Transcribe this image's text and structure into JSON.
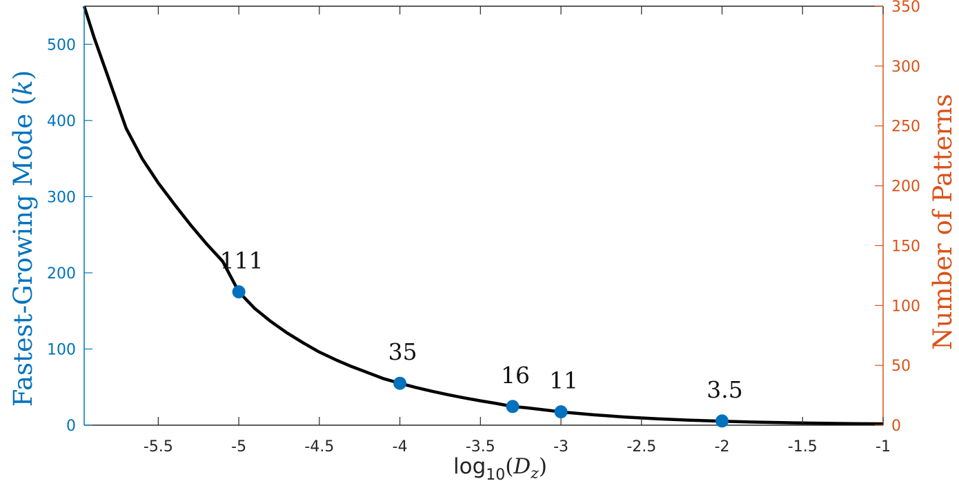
{
  "colors": {
    "left_axis": "#0072BD",
    "right_axis": "#D95319",
    "curve": "#000000",
    "markers": "#0072BD",
    "frame": "#262626"
  },
  "chart_data": {
    "type": "line",
    "xlabel": "log10(Dz)",
    "xlabel_parts": {
      "main": "log",
      "sub": "10",
      "paren_open": "(",
      "var": "D",
      "var_sub": "z",
      "paren_close": ")"
    },
    "ylabel_left": "Fastest-Growing Mode (k)",
    "ylabel_left_parts": {
      "text": "Fastest-Growing Mode (",
      "var": "k",
      "close": ")"
    },
    "ylabel_right": "Number of Patterns",
    "xlim": [
      -5.96,
      -1
    ],
    "ylim_left": [
      0,
      550
    ],
    "ylim_right": [
      0,
      350
    ],
    "x_ticks": [
      -5.5,
      -5,
      -4.5,
      -4,
      -3.5,
      -3,
      -2.5,
      -2,
      -1.5,
      -1
    ],
    "x_tick_labels": [
      "-5.5",
      "-5",
      "-4.5",
      "-4",
      "-3.5",
      "-3",
      "-2.5",
      "-2",
      "-1.5",
      "-1"
    ],
    "y_left_ticks": [
      0,
      100,
      200,
      300,
      400,
      500
    ],
    "y_left_tick_labels": [
      "0",
      "100",
      "200",
      "300",
      "400",
      "500"
    ],
    "y_right_ticks": [
      0,
      50,
      100,
      150,
      200,
      250,
      300,
      350
    ],
    "y_right_tick_labels": [
      "0",
      "50",
      "100",
      "150",
      "200",
      "250",
      "300",
      "350"
    ],
    "grid": false,
    "series": [
      {
        "axis": "left",
        "style": "line",
        "x": [
          -5.96,
          -5.9,
          -5.8,
          -5.7,
          -5.6,
          -5.5,
          -5.4,
          -5.3,
          -5.2,
          -5.1,
          -5.0,
          -4.9,
          -4.8,
          -4.7,
          -4.6,
          -4.5,
          -4.4,
          -4.3,
          -4.2,
          -4.1,
          -4.0,
          -3.9,
          -3.8,
          -3.7,
          -3.6,
          -3.5,
          -3.4,
          -3.3,
          -3.2,
          -3.1,
          -3.0,
          -2.8,
          -2.6,
          -2.4,
          -2.2,
          -2.0,
          -1.8,
          -1.6,
          -1.4,
          -1.2,
          -1.0
        ],
        "values": [
          550,
          510,
          450,
          390,
          350,
          318,
          290,
          263,
          238,
          215,
          175,
          153,
          136,
          121,
          108,
          96,
          86,
          77,
          69,
          61,
          55,
          49.5,
          44.5,
          40,
          35.8,
          32,
          28.5,
          24.5,
          22.5,
          20,
          17.5,
          13.7,
          10.7,
          8.4,
          6.6,
          5.2,
          4.1,
          3.3,
          2.6,
          2.1,
          1.7
        ]
      },
      {
        "axis": "left",
        "style": "markers",
        "x": [
          -5,
          -4,
          -3.3,
          -3,
          -2
        ],
        "values": [
          175,
          55,
          24.5,
          17.5,
          5.5
        ],
        "labels": [
          "111",
          "35",
          "16",
          "11",
          "3.5"
        ]
      }
    ]
  }
}
